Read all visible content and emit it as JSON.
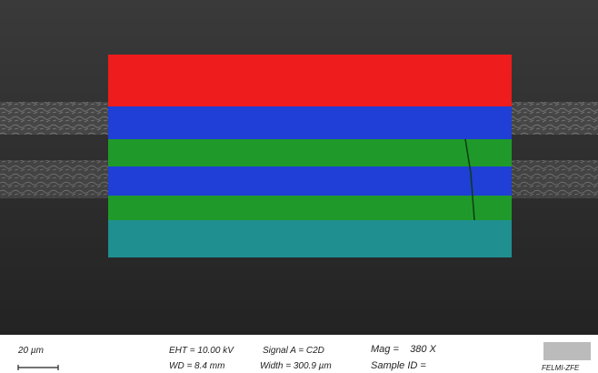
{
  "scale_bar": "20 µm",
  "info": {
    "eht": "EHT = 10.00 kV",
    "wd": "WD = 8.4 mm",
    "signal": "Signal A = C2D",
    "width": "Width = 300.9 µm",
    "mag": "Mag =    380 X",
    "sample_id": "Sample ID ="
  },
  "logo": "FELMI-ZFE"
}
